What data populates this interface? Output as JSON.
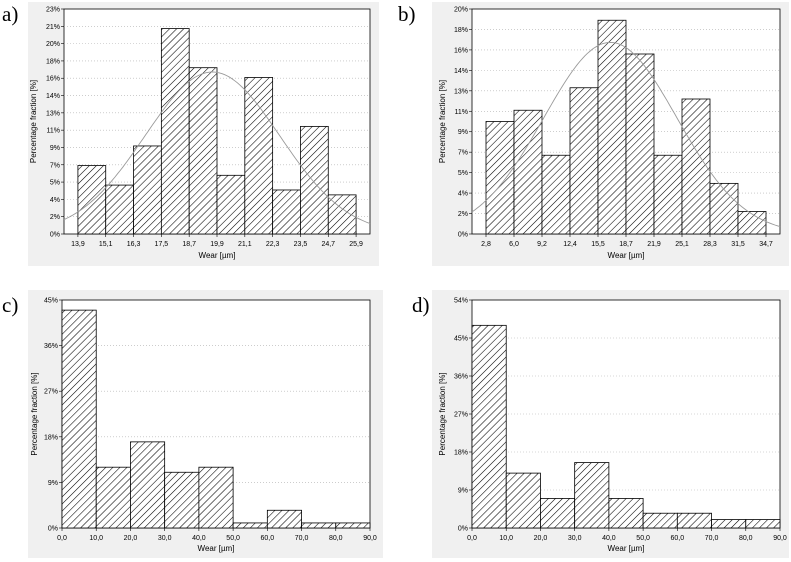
{
  "chart_data": [
    {
      "panel": "a)",
      "type": "histogram",
      "xlabel": "Wear [µm]",
      "ylabel": "Percentage fraction [%]",
      "x_ticks": [
        "13,9",
        "15,1",
        "16,3",
        "17,5",
        "18,7",
        "19,9",
        "21,1",
        "22,3",
        "23,5",
        "24,7",
        "25,9"
      ],
      "y_ticks": [
        "0%",
        "2%",
        "4%",
        "5%",
        "7%",
        "9%",
        "11%",
        "13%",
        "14%",
        "16%",
        "18%",
        "20%",
        "21%",
        "23%"
      ],
      "ylim": [
        0,
        23
      ],
      "values": [
        7,
        5,
        9,
        21,
        17,
        6,
        16,
        4.5,
        11,
        4
      ],
      "fit_curve": "normal",
      "grid": "horizontal dotted"
    },
    {
      "panel": "b)",
      "type": "histogram",
      "xlabel": "Wear [µm]",
      "ylabel": "Percentage fraction [%]",
      "x_ticks": [
        "2,8",
        "6,0",
        "9,2",
        "12,4",
        "15,5",
        "18,7",
        "21,9",
        "25,1",
        "28,3",
        "31,5",
        "34,7"
      ],
      "y_ticks": [
        "0%",
        "2%",
        "4%",
        "5%",
        "7%",
        "9%",
        "11%",
        "13%",
        "14%",
        "16%",
        "18%",
        "20%"
      ],
      "ylim": [
        0,
        20
      ],
      "values": [
        10,
        11,
        7,
        13,
        19,
        16,
        7,
        12,
        4.5,
        2
      ],
      "fit_curve": "normal",
      "grid": "horizontal dotted"
    },
    {
      "panel": "c)",
      "type": "histogram",
      "xlabel": "Wear [µm]",
      "ylabel": "Percentage fraction [%]",
      "x_ticks": [
        "0,0",
        "10,0",
        "20,0",
        "30,0",
        "40,0",
        "50,0",
        "60,0",
        "70,0",
        "80,0",
        "90,0"
      ],
      "y_ticks": [
        "0%",
        "9%",
        "18%",
        "27%",
        "36%",
        "45%"
      ],
      "ylim": [
        0,
        45
      ],
      "values": [
        43,
        12,
        17,
        11,
        12,
        1,
        3.5,
        1,
        1
      ],
      "fit_curve": "none",
      "grid": "horizontal dotted"
    },
    {
      "panel": "d)",
      "type": "histogram",
      "xlabel": "Wear [µm]",
      "ylabel": "Percentage fraction [%]",
      "x_ticks": [
        "0,0",
        "10,0",
        "20,0",
        "30,0",
        "40,0",
        "50,0",
        "60,0",
        "70,0",
        "80,0",
        "90,0"
      ],
      "y_ticks": [
        "0%",
        "9%",
        "18%",
        "27%",
        "36%",
        "45%",
        "54%"
      ],
      "ylim": [
        0,
        54
      ],
      "values": [
        48,
        13,
        7,
        15.5,
        7,
        3.5,
        3.5,
        2,
        2
      ],
      "fit_curve": "none",
      "grid": "horizontal dotted"
    }
  ],
  "colors": {
    "frame_bg": "#f0f0f0",
    "plot_bg": "#ffffff",
    "curve": "#9a9a9a",
    "hatch": "#000000"
  }
}
